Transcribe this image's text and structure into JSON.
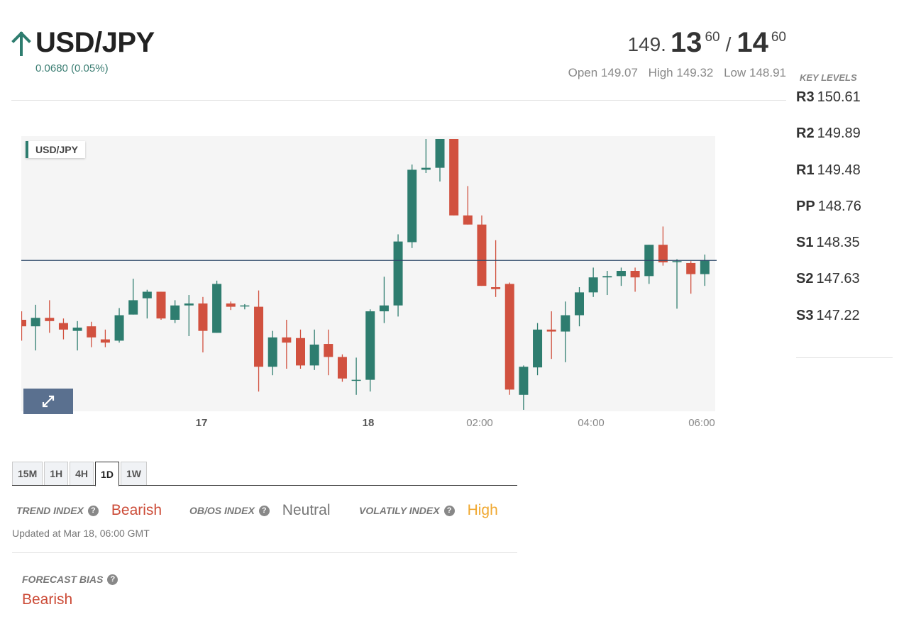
{
  "instrument": {
    "symbol": "USD/JPY",
    "change": "0.0680 (0.05%)",
    "direction_icon": "arrow-up-icon"
  },
  "quote": {
    "bid_prefix": "149.",
    "bid_big": "13",
    "bid_small": "60",
    "separator": "/",
    "ask_big": "14",
    "ask_small": "60",
    "open": "Open 149.07",
    "high": "High 149.32",
    "low": "Low 148.91"
  },
  "key_levels": {
    "title": "KEY LEVELS",
    "items": [
      {
        "level": "R3",
        "value": "150.61"
      },
      {
        "level": "R2",
        "value": "149.89"
      },
      {
        "level": "R1",
        "value": "149.48"
      },
      {
        "level": "PP",
        "value": "148.76"
      },
      {
        "level": "S1",
        "value": "148.35"
      },
      {
        "level": "S2",
        "value": "147.63"
      },
      {
        "level": "S3",
        "value": "147.22"
      }
    ]
  },
  "timeframes": {
    "tabs": [
      "15M",
      "1H",
      "4H",
      "1D",
      "1W"
    ],
    "active": "1D"
  },
  "indices": {
    "trend_label": "TREND INDEX",
    "trend_value": "Bearish",
    "obos_label": "OB/OS INDEX",
    "obos_value": "Neutral",
    "volatility_label": "VOLATILY INDEX",
    "volatility_value": "High",
    "updated": "Updated at Mar 18, 06:00 GMT"
  },
  "forecast": {
    "label": "FORECAST BIAS",
    "value": "Bearish"
  },
  "colors": {
    "up": "#2e7d6f",
    "down": "#d1513f",
    "bearish": "#cc4b37",
    "neutral": "#777777",
    "high": "#f0a830",
    "price_tag": "#2f4a6b"
  },
  "chart_data": {
    "type": "candlestick",
    "title": "USD/JPY",
    "ylim": [
      148.91,
      149.33
    ],
    "y_ticks": [
      "149.300",
      "149.250",
      "149.200",
      "149.150",
      "149.100",
      "149.050",
      "149.000",
      "148.950"
    ],
    "x_ticks": [
      "17",
      "18",
      "02:00",
      "04:00",
      "06:00"
    ],
    "current_price": "149.141",
    "grid": false,
    "candles": [
      {
        "o": 149.05,
        "h": 149.063,
        "l": 149.018,
        "c": 149.04
      },
      {
        "o": 149.04,
        "h": 149.073,
        "l": 149.003,
        "c": 149.053
      },
      {
        "o": 149.053,
        "h": 149.08,
        "l": 149.03,
        "c": 149.048
      },
      {
        "o": 149.045,
        "h": 149.052,
        "l": 149.02,
        "c": 149.035
      },
      {
        "o": 149.033,
        "h": 149.048,
        "l": 149.003,
        "c": 149.038
      },
      {
        "o": 149.04,
        "h": 149.047,
        "l": 149.008,
        "c": 149.023
      },
      {
        "o": 149.02,
        "h": 149.035,
        "l": 149.008,
        "c": 149.015
      },
      {
        "o": 149.018,
        "h": 149.068,
        "l": 149.015,
        "c": 149.057
      },
      {
        "o": 149.058,
        "h": 149.113,
        "l": 149.058,
        "c": 149.08
      },
      {
        "o": 149.083,
        "h": 149.096,
        "l": 149.052,
        "c": 149.093
      },
      {
        "o": 149.093,
        "h": 149.093,
        "l": 149.05,
        "c": 149.052
      },
      {
        "o": 149.05,
        "h": 149.08,
        "l": 149.045,
        "c": 149.072
      },
      {
        "o": 149.072,
        "h": 149.088,
        "l": 149.025,
        "c": 149.075
      },
      {
        "o": 149.075,
        "h": 149.085,
        "l": 149.0,
        "c": 149.033
      },
      {
        "o": 149.03,
        "h": 149.11,
        "l": 149.03,
        "c": 149.105
      },
      {
        "o": 149.075,
        "h": 149.078,
        "l": 149.065,
        "c": 149.07
      },
      {
        "o": 149.072,
        "h": 149.074,
        "l": 149.066,
        "c": 149.072
      },
      {
        "o": 149.07,
        "h": 149.095,
        "l": 148.94,
        "c": 148.978
      },
      {
        "o": 148.978,
        "h": 149.033,
        "l": 148.965,
        "c": 149.023
      },
      {
        "o": 149.023,
        "h": 149.05,
        "l": 148.975,
        "c": 149.015
      },
      {
        "o": 149.022,
        "h": 149.035,
        "l": 148.975,
        "c": 148.98
      },
      {
        "o": 148.98,
        "h": 149.035,
        "l": 148.973,
        "c": 149.012
      },
      {
        "o": 149.013,
        "h": 149.035,
        "l": 148.965,
        "c": 148.993
      },
      {
        "o": 148.993,
        "h": 148.997,
        "l": 148.955,
        "c": 148.96
      },
      {
        "o": 148.958,
        "h": 148.992,
        "l": 148.935,
        "c": 148.958
      },
      {
        "o": 148.958,
        "h": 149.066,
        "l": 148.94,
        "c": 149.063
      },
      {
        "o": 149.063,
        "h": 149.116,
        "l": 149.045,
        "c": 149.072
      },
      {
        "o": 149.072,
        "h": 149.181,
        "l": 149.055,
        "c": 149.17
      },
      {
        "o": 149.169,
        "h": 149.288,
        "l": 149.16,
        "c": 149.28
      },
      {
        "o": 149.28,
        "h": 149.33,
        "l": 149.275,
        "c": 149.283
      },
      {
        "o": 149.283,
        "h": 149.33,
        "l": 149.262,
        "c": 149.33
      },
      {
        "o": 149.33,
        "h": 149.33,
        "l": 149.21,
        "c": 149.21
      },
      {
        "o": 149.21,
        "h": 149.255,
        "l": 149.196,
        "c": 149.196
      },
      {
        "o": 149.196,
        "h": 149.21,
        "l": 149.102,
        "c": 149.102
      },
      {
        "o": 149.1,
        "h": 149.172,
        "l": 149.085,
        "c": 149.097
      },
      {
        "o": 149.105,
        "h": 149.107,
        "l": 148.935,
        "c": 148.943
      },
      {
        "o": 148.935,
        "h": 148.98,
        "l": 148.912,
        "c": 148.978
      },
      {
        "o": 148.977,
        "h": 149.045,
        "l": 148.965,
        "c": 149.035
      },
      {
        "o": 149.035,
        "h": 149.063,
        "l": 148.99,
        "c": 149.032
      },
      {
        "o": 149.032,
        "h": 149.078,
        "l": 148.985,
        "c": 149.057
      },
      {
        "o": 149.057,
        "h": 149.1,
        "l": 149.04,
        "c": 149.092
      },
      {
        "o": 149.092,
        "h": 149.13,
        "l": 149.085,
        "c": 149.115
      },
      {
        "o": 149.115,
        "h": 149.125,
        "l": 149.088,
        "c": 149.117
      },
      {
        "o": 149.117,
        "h": 149.13,
        "l": 149.102,
        "c": 149.125
      },
      {
        "o": 149.125,
        "h": 149.13,
        "l": 149.093,
        "c": 149.115
      },
      {
        "o": 149.117,
        "h": 149.165,
        "l": 149.105,
        "c": 149.165
      },
      {
        "o": 149.165,
        "h": 149.193,
        "l": 149.133,
        "c": 149.138
      },
      {
        "o": 149.14,
        "h": 149.143,
        "l": 149.067,
        "c": 149.14
      },
      {
        "o": 149.137,
        "h": 149.14,
        "l": 149.09,
        "c": 149.12
      },
      {
        "o": 149.12,
        "h": 149.15,
        "l": 149.102,
        "c": 149.141
      }
    ]
  }
}
